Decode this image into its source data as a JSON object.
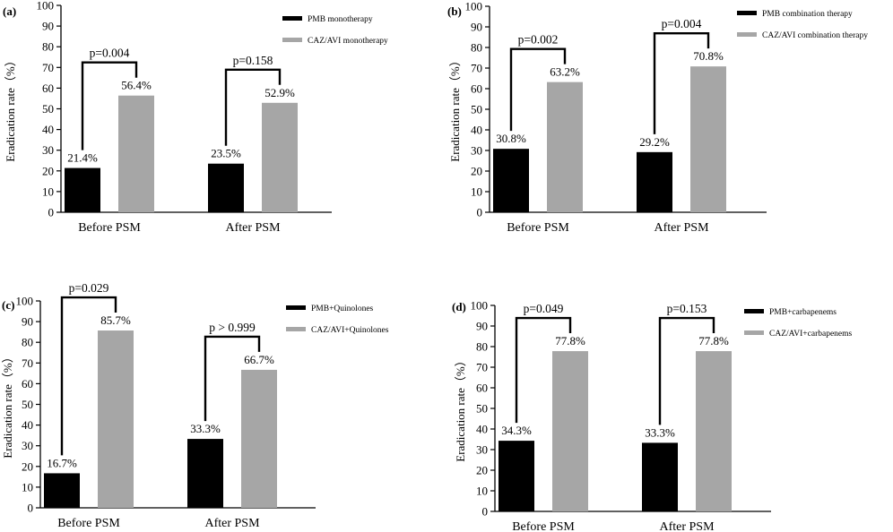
{
  "chart_data": [
    {
      "panel_label": "(a)",
      "type": "bar",
      "categories": [
        "Before PSM",
        "After PSM"
      ],
      "series": [
        {
          "name": "PMB monotherapy",
          "color": "#000000",
          "values": [
            21.4,
            23.5
          ],
          "labels": [
            "21.4%",
            "23.5%"
          ]
        },
        {
          "name": "CAZ/AVI monotherapy",
          "color": "#a6a6a6",
          "values": [
            56.4,
            52.9
          ],
          "labels": [
            "56.4%",
            "52.9%"
          ]
        }
      ],
      "p_values": [
        "p=0.004",
        "p=0.158"
      ],
      "ylabel": "Eradication rate（%）",
      "ylim": [
        0,
        100
      ],
      "yticks": [
        0,
        10,
        20,
        30,
        40,
        50,
        60,
        70,
        80,
        90,
        100
      ]
    },
    {
      "panel_label": "(b)",
      "type": "bar",
      "categories": [
        "Before PSM",
        "After PSM"
      ],
      "series": [
        {
          "name": "PMB combination therapy",
          "color": "#000000",
          "values": [
            30.8,
            29.2
          ],
          "labels": [
            "30.8%",
            "29.2%"
          ]
        },
        {
          "name": "CAZ/AVI combination therapy",
          "color": "#a6a6a6",
          "values": [
            63.2,
            70.8
          ],
          "labels": [
            "63.2%",
            "70.8%"
          ]
        }
      ],
      "p_values": [
        "p=0.002",
        "p=0.004"
      ],
      "ylabel": "Eradication rate（%）",
      "ylim": [
        0,
        100
      ],
      "yticks": [
        0,
        10,
        20,
        30,
        40,
        50,
        60,
        70,
        80,
        90,
        100
      ]
    },
    {
      "panel_label": "(c)",
      "type": "bar",
      "categories": [
        "Before PSM",
        "After PSM"
      ],
      "series": [
        {
          "name": "PMB+Quinolones",
          "color": "#000000",
          "values": [
            16.7,
            33.3
          ],
          "labels": [
            "16.7%",
            "33.3%"
          ]
        },
        {
          "name": "CAZ/AVI+Quinolones",
          "color": "#a6a6a6",
          "values": [
            85.7,
            66.7
          ],
          "labels": [
            "85.7%",
            "66.7%"
          ]
        }
      ],
      "p_values": [
        "p=0.029",
        "p > 0.999"
      ],
      "ylabel": "Eradication rate（%）",
      "ylim": [
        0,
        100
      ],
      "yticks": [
        0,
        10,
        20,
        30,
        40,
        50,
        60,
        70,
        80,
        90,
        100
      ]
    },
    {
      "panel_label": "(d)",
      "type": "bar",
      "categories": [
        "Before PSM",
        "After PSM"
      ],
      "series": [
        {
          "name": "PMB+carbapenems",
          "color": "#000000",
          "values": [
            34.3,
            33.3
          ],
          "labels": [
            "34.3%",
            "33.3%"
          ]
        },
        {
          "name": "CAZ/AVI+carbapenems",
          "color": "#a6a6a6",
          "values": [
            77.8,
            77.8
          ],
          "labels": [
            "77.8%",
            "77.8%"
          ]
        }
      ],
      "p_values": [
        "p=0.049",
        "p=0.153"
      ],
      "ylabel": "Eradication rate（%）",
      "ylim": [
        0,
        100
      ],
      "yticks": [
        0,
        10,
        20,
        30,
        40,
        50,
        60,
        70,
        80,
        90,
        100
      ]
    }
  ]
}
